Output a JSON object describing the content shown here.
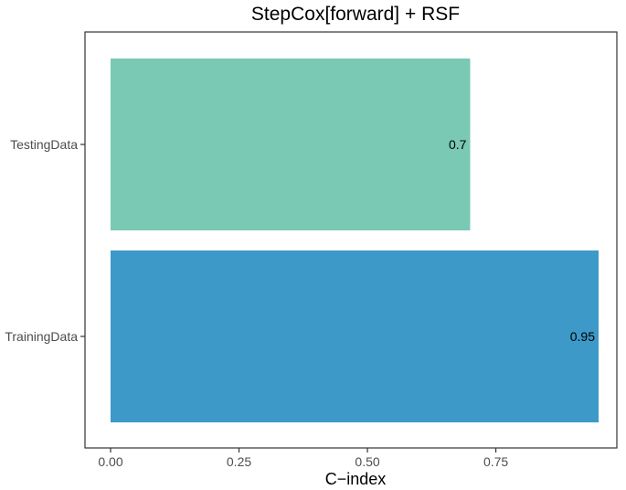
{
  "chart_data": {
    "type": "bar",
    "orientation": "horizontal",
    "title": "StepCox[forward] + RSF",
    "xlabel": "C−index",
    "ylabel": "",
    "categories": [
      "TestingData",
      "TrainingData"
    ],
    "values": [
      0.7,
      0.95
    ],
    "value_labels": [
      "0.7",
      "0.95"
    ],
    "colors": [
      "#79c9b4",
      "#3c99c8"
    ],
    "xlim": [
      0,
      0.95
    ],
    "xticks": [
      0,
      0.25,
      0.5,
      0.75
    ],
    "xtick_labels": [
      "0.00",
      "0.25",
      "0.50",
      "0.75"
    ],
    "grid": false,
    "legend": "none"
  }
}
